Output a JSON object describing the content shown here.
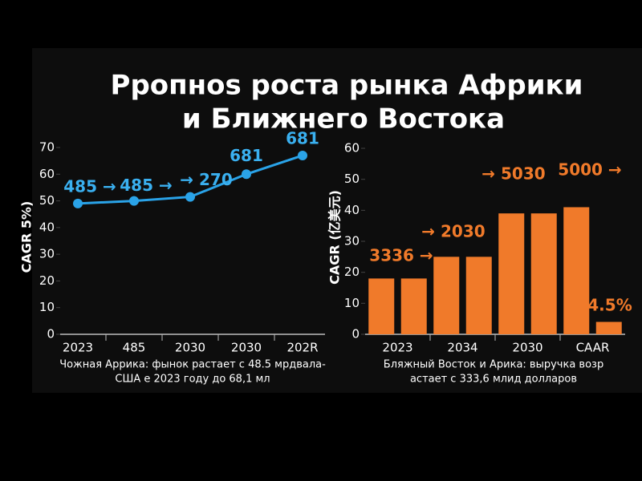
{
  "title": [
    "Рропноs роста рынка Африки",
    "и Ближнего Востока"
  ],
  "chart_data": [
    {
      "type": "line",
      "y_label": "CAGR 5%)",
      "categories": [
        "2023",
        "485",
        "2030",
        "2030",
        "202R"
      ],
      "values": [
        49,
        50,
        51.5,
        60,
        67
      ],
      "color": "#2aa3e8",
      "ylim": [
        0,
        70
      ],
      "yticks": [
        0,
        10,
        20,
        30,
        40,
        50,
        60,
        70
      ],
      "annotations": [
        "485 →",
        "485 →",
        "→ 270",
        "681",
        "681"
      ],
      "caption": [
        "Чожная Аррика: фынок растает с 48.5 мрдвала-",
        "США е 2023 году до 68,1 мл"
      ]
    },
    {
      "type": "bar",
      "y_label": "CAGR (亿美元)",
      "categories": [
        "2023",
        null,
        "2034",
        null,
        "2030",
        null,
        "CAAR",
        null
      ],
      "values": [
        18,
        18,
        25,
        25,
        39,
        39,
        41,
        4
      ],
      "color": "#f07a2a",
      "ylim": [
        0,
        60
      ],
      "yticks": [
        0,
        10,
        20,
        30,
        40,
        50,
        60
      ],
      "annotations": [
        "3336 →",
        "→ 2030",
        "→ 5030",
        "5000 →",
        "4.5%"
      ],
      "caption": [
        "Бляжный Восток и Арика: выручка возр",
        "астает с 333,6 млид долларов"
      ]
    }
  ]
}
